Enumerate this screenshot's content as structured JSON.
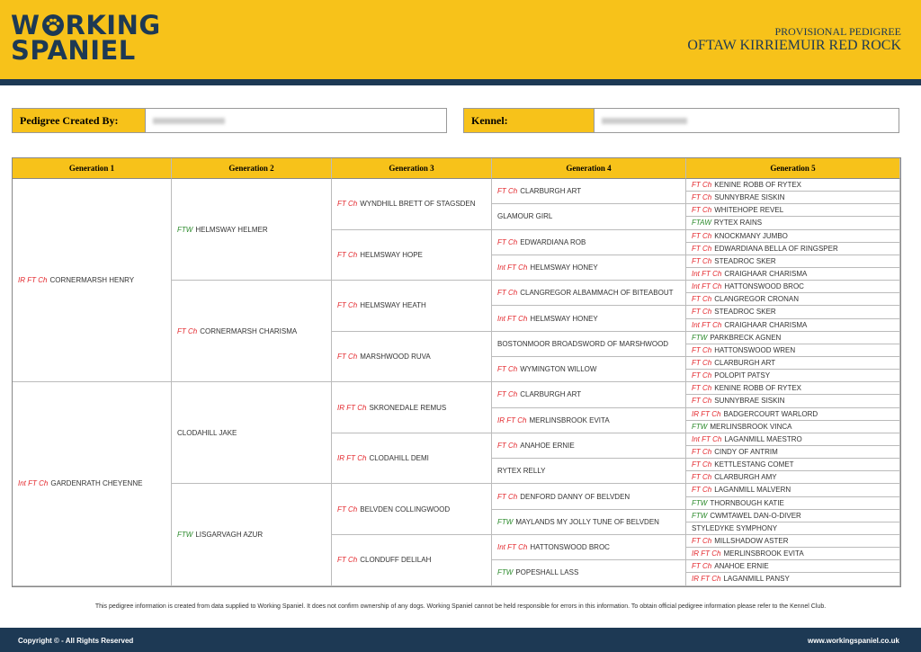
{
  "header": {
    "logo": {
      "line1_start": "W",
      "line1_end": "RKING",
      "line2": "SPANIEL"
    },
    "subtitle": "PROVISIONAL PEDIGREE",
    "title": "OFTAW KIRRIEMUIR RED ROCK"
  },
  "fields": [
    {
      "label": "Pedigree Created By:"
    },
    {
      "label": "Kennel:"
    }
  ],
  "pedigree": {
    "headers": [
      "Generation 1",
      "Generation 2",
      "Generation 3",
      "Generation 4",
      "Generation 5"
    ],
    "generations": [
      [
        {
          "title": "IR FT Ch",
          "name": "CORNERMARSH HENRY",
          "color": "#e3262b"
        },
        {
          "title": "Int FT Ch",
          "name": "GARDENRATH CHEYENNE",
          "color": "#e3262b"
        }
      ],
      [
        {
          "title": "FTW",
          "name": "HELMSWAY HELMER",
          "color": "#2a8a2a"
        },
        {
          "title": "FT Ch",
          "name": "CORNERMARSH CHARISMA",
          "color": "#e3262b"
        },
        {
          "name": "CLODAHILL JAKE"
        },
        {
          "title": "FTW",
          "name": "LISGARVAGH AZUR",
          "color": "#2a8a2a"
        }
      ],
      [
        {
          "title": "FT Ch",
          "name": "WYNDHILL BRETT OF STAGSDEN",
          "color": "#e3262b"
        },
        {
          "title": "FT Ch",
          "name": "HELMSWAY HOPE",
          "color": "#e3262b"
        },
        {
          "title": "FT Ch",
          "name": "HELMSWAY HEATH",
          "color": "#e3262b"
        },
        {
          "title": "FT Ch",
          "name": "MARSHWOOD RUVA",
          "color": "#e3262b"
        },
        {
          "title": "IR FT Ch",
          "name": "SKRONEDALE REMUS",
          "color": "#e3262b"
        },
        {
          "title": "IR FT Ch",
          "name": "CLODAHILL DEMI",
          "color": "#e3262b"
        },
        {
          "title": "FT Ch",
          "name": "BELVDEN COLLINGWOOD",
          "color": "#e3262b"
        },
        {
          "title": "FT Ch",
          "name": "CLONDUFF DELILAH",
          "color": "#e3262b"
        }
      ],
      [
        {
          "title": "FT Ch",
          "name": "CLARBURGH ART",
          "color": "#e3262b"
        },
        {
          "name": "GLAMOUR GIRL"
        },
        {
          "title": "FT Ch",
          "name": "EDWARDIANA ROB",
          "color": "#e3262b"
        },
        {
          "title": "Int FT Ch",
          "name": "HELMSWAY HONEY",
          "color": "#e3262b"
        },
        {
          "title": "FT Ch",
          "name": "CLANGREGOR ALBAMMACH OF BITEABOUT",
          "color": "#e3262b"
        },
        {
          "title": "Int FT Ch",
          "name": "HELMSWAY HONEY",
          "color": "#e3262b"
        },
        {
          "name": "BOSTONMOOR BROADSWORD OF MARSHWOOD"
        },
        {
          "title": "FT Ch",
          "name": "WYMINGTON WILLOW",
          "color": "#e3262b"
        },
        {
          "title": "FT Ch",
          "name": "CLARBURGH ART",
          "color": "#e3262b"
        },
        {
          "title": "IR FT Ch",
          "name": "MERLINSBROOK EVITA",
          "color": "#e3262b"
        },
        {
          "title": "FT Ch",
          "name": "ANAHOE ERNIE",
          "color": "#e3262b"
        },
        {
          "name": "RYTEX RELLY"
        },
        {
          "title": "FT Ch",
          "name": "DENFORD DANNY OF BELVDEN",
          "color": "#e3262b"
        },
        {
          "title": "FTW",
          "name": "MAYLANDS MY JOLLY TUNE OF BELVDEN",
          "color": "#2a8a2a"
        },
        {
          "title": "Int FT Ch",
          "name": "HATTONSWOOD BROC",
          "color": "#e3262b"
        },
        {
          "title": "FTW",
          "name": "POPESHALL LASS",
          "color": "#2a8a2a"
        }
      ],
      [
        {
          "title": "FT Ch",
          "name": "KENINE ROBB OF RYTEX",
          "color": "#e3262b"
        },
        {
          "title": "FT Ch",
          "name": "SUNNYBRAE SISKIN",
          "color": "#e3262b"
        },
        {
          "title": "FT Ch",
          "name": "WHITEHOPE REVEL",
          "color": "#e3262b"
        },
        {
          "title": "FTAW",
          "name": "RYTEX RAINS",
          "color": "#2a8a2a"
        },
        {
          "title": "FT Ch",
          "name": "KNOCKMANY JUMBO",
          "color": "#e3262b"
        },
        {
          "title": "FT Ch",
          "name": "EDWARDIANA BELLA OF RINGSPER",
          "color": "#e3262b"
        },
        {
          "title": "FT Ch",
          "name": "STEADROC SKER",
          "color": "#e3262b"
        },
        {
          "title": "Int FT Ch",
          "name": "CRAIGHAAR CHARISMA",
          "color": "#e3262b"
        },
        {
          "title": "Int FT Ch",
          "name": "HATTONSWOOD BROC",
          "color": "#e3262b"
        },
        {
          "title": "FT Ch",
          "name": "CLANGREGOR CRONAN",
          "color": "#e3262b"
        },
        {
          "title": "FT Ch",
          "name": "STEADROC SKER",
          "color": "#e3262b"
        },
        {
          "title": "Int FT Ch",
          "name": "CRAIGHAAR CHARISMA",
          "color": "#e3262b"
        },
        {
          "title": "FTW",
          "name": "PARKBRECK AGNEN",
          "color": "#2a8a2a"
        },
        {
          "title": "FT Ch",
          "name": "HATTONSWOOD WREN",
          "color": "#e3262b"
        },
        {
          "title": "FT Ch",
          "name": "CLARBURGH ART",
          "color": "#e3262b"
        },
        {
          "title": "FT Ch",
          "name": "POLOPIT PATSY",
          "color": "#e3262b"
        },
        {
          "title": "FT Ch",
          "name": "KENINE ROBB OF RYTEX",
          "color": "#e3262b"
        },
        {
          "title": "FT Ch",
          "name": "SUNNYBRAE SISKIN",
          "color": "#e3262b"
        },
        {
          "title": "IR FT Ch",
          "name": "BADGERCOURT WARLORD",
          "color": "#e3262b"
        },
        {
          "title": "FTW",
          "name": "MERLINSBROOK VINCA",
          "color": "#2a8a2a"
        },
        {
          "title": "Int FT Ch",
          "name": "LAGANMILL MAESTRO",
          "color": "#e3262b"
        },
        {
          "title": "FT Ch",
          "name": "CINDY OF ANTRIM",
          "color": "#e3262b"
        },
        {
          "title": "FT Ch",
          "name": "KETTLESTANG COMET",
          "color": "#e3262b"
        },
        {
          "title": "FT Ch",
          "name": "CLARBURGH AMY",
          "color": "#e3262b"
        },
        {
          "title": "FT Ch",
          "name": "LAGANMILL MALVERN",
          "color": "#e3262b"
        },
        {
          "title": "FTW",
          "name": "THORNBOUGH KATIE",
          "color": "#2a8a2a"
        },
        {
          "title": "FTW",
          "name": "CWMTAWEL DAN-O-DIVER",
          "color": "#2a8a2a"
        },
        {
          "name": "STYLEDYKE SYMPHONY"
        },
        {
          "title": "FT Ch",
          "name": "MILLSHADOW ASTER",
          "color": "#e3262b"
        },
        {
          "title": "IR FT Ch",
          "name": "MERLINSBROOK EVITA",
          "color": "#e3262b"
        },
        {
          "title": "FT Ch",
          "name": "ANAHOE ERNIE",
          "color": "#e3262b"
        },
        {
          "title": "IR FT Ch",
          "name": "LAGANMILL PANSY",
          "color": "#e3262b"
        }
      ]
    ]
  },
  "disclaimer": "This pedigree information is created from data supplied to Working Spaniel. It does not confirm ownership of any dogs. Working Spaniel cannot be held responsible for errors in this information. To obtain official pedigree information please refer to the Kennel Club.",
  "footer": {
    "copyright": "Copyright © - All Rights Reserved",
    "website": "www.workingspaniel.co.uk"
  }
}
